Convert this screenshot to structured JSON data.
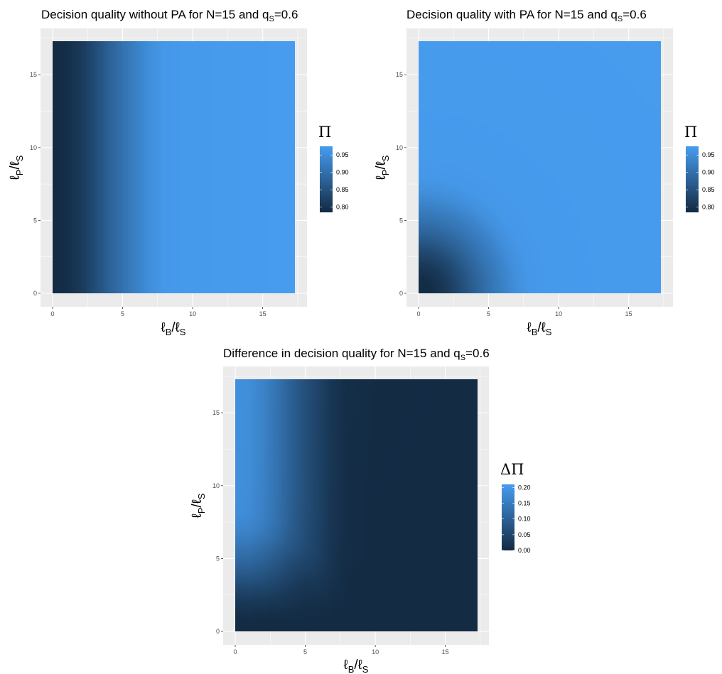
{
  "palette": {
    "low": "#132B43",
    "high": "#479cef",
    "panel": "#EBEBEB",
    "grid": "#FFFFFF"
  },
  "chart_data": [
    {
      "type": "heatmap",
      "title": {
        "main": "Decision quality without PA for N=15 and q",
        "sub": "S",
        "tail": "=0.6"
      },
      "xlabel": {
        "main": "ℓ",
        "sub1": "B",
        "mid": "/ℓ",
        "sub2": "S"
      },
      "ylabel": {
        "main": "ℓ",
        "sub1": "P",
        "mid": "/ℓ",
        "sub2": "S"
      },
      "xlim": [
        0,
        17.3
      ],
      "ylim": [
        0,
        17.3
      ],
      "x_ticks": [
        0,
        5,
        10,
        15
      ],
      "y_ticks": [
        0,
        5,
        10,
        15
      ],
      "x_tick_labels": [
        "0",
        "5",
        "10",
        "15"
      ],
      "y_tick_labels": [
        "0",
        "5",
        "10",
        "15"
      ],
      "grid": true,
      "legend": {
        "title": "Π",
        "position": "right",
        "range": [
          0.785,
          0.975
        ],
        "ticks": [
          0.8,
          0.85,
          0.9,
          0.95
        ],
        "tick_labels": [
          "0.80",
          "0.85",
          "0.90",
          "0.95"
        ]
      },
      "fill": {
        "pattern": "Fill depends on x only; darkest at x=0 and reaching the top of the scale near x≈8",
        "x": [
          0,
          1,
          2,
          3,
          4,
          5,
          6,
          7,
          8,
          10,
          17.3
        ],
        "values": [
          0.785,
          0.79,
          0.81,
          0.84,
          0.875,
          0.905,
          0.93,
          0.955,
          0.968,
          0.972,
          0.975
        ]
      }
    },
    {
      "type": "heatmap",
      "title": {
        "main": "Decision quality with PA for N=15 and q",
        "sub": "S",
        "tail": "=0.6"
      },
      "xlabel": {
        "main": "ℓ",
        "sub1": "B",
        "mid": "/ℓ",
        "sub2": "S"
      },
      "ylabel": {
        "main": "ℓ",
        "sub1": "P",
        "mid": "/ℓ",
        "sub2": "S"
      },
      "xlim": [
        0,
        17.3
      ],
      "ylim": [
        0,
        17.3
      ],
      "x_ticks": [
        0,
        5,
        10,
        15
      ],
      "y_ticks": [
        0,
        5,
        10,
        15
      ],
      "x_tick_labels": [
        "0",
        "5",
        "10",
        "15"
      ],
      "y_tick_labels": [
        "0",
        "5",
        "10",
        "15"
      ],
      "grid": true,
      "legend": {
        "title": "Π",
        "position": "right",
        "range": [
          0.785,
          0.975
        ],
        "ticks": [
          0.8,
          0.85,
          0.9,
          0.95
        ],
        "tick_labels": [
          "0.80",
          "0.85",
          "0.90",
          "0.95"
        ]
      },
      "fill": {
        "pattern": "Fill depends on distance from the origin r = sqrt(x^2 + y^2); darkest at the origin",
        "r": [
          0,
          1,
          2,
          3,
          4,
          5,
          6,
          7,
          8,
          10,
          25
        ],
        "values": [
          0.785,
          0.79,
          0.81,
          0.84,
          0.875,
          0.905,
          0.93,
          0.955,
          0.968,
          0.972,
          0.975
        ]
      }
    },
    {
      "type": "heatmap",
      "title": {
        "main": "Difference in decision quality for N=15 and q",
        "sub": "S",
        "tail": "=0.6"
      },
      "xlabel": {
        "main": "ℓ",
        "sub1": "B",
        "mid": "/ℓ",
        "sub2": "S"
      },
      "ylabel": {
        "main": "ℓ",
        "sub1": "P",
        "mid": "/ℓ",
        "sub2": "S"
      },
      "xlim": [
        0,
        17.3
      ],
      "ylim": [
        0,
        17.3
      ],
      "x_ticks": [
        0,
        5,
        10,
        15
      ],
      "y_ticks": [
        0,
        5,
        10,
        15
      ],
      "x_tick_labels": [
        "0",
        "5",
        "10",
        "15"
      ],
      "y_tick_labels": [
        "0",
        "5",
        "10",
        "15"
      ],
      "grid": true,
      "legend": {
        "title": "ΔΠ",
        "position": "right",
        "range": [
          0.0,
          0.21
        ],
        "ticks": [
          0.0,
          0.05,
          0.1,
          0.15,
          0.2
        ],
        "tick_labels": [
          "0.00",
          "0.05",
          "0.10",
          "0.15",
          "0.20"
        ]
      },
      "fill": {
        "pattern": "Difference between the two panels above (with PA minus without PA); largest at small x and large y"
      }
    }
  ]
}
